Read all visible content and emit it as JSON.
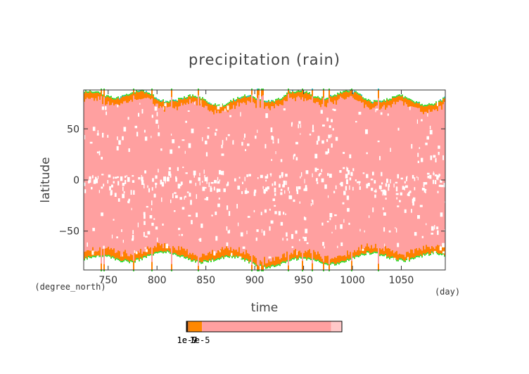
{
  "chart_data": {
    "type": "heatmap",
    "title": "precipitation (rain)",
    "xlabel": "time",
    "ylabel": "latitude",
    "x_units": "(day)",
    "y_units": "(degree_north)",
    "xlim": [
      725,
      1095
    ],
    "ylim": [
      -88,
      88
    ],
    "x_ticks": [
      750,
      800,
      850,
      900,
      950,
      1000,
      1050
    ],
    "y_ticks": [
      50,
      0,
      -50
    ],
    "x_tick_labels": [
      "750",
      "800",
      "850",
      "900",
      "950",
      "1000",
      "1050"
    ],
    "y_tick_labels": [
      "50",
      "0",
      "−50"
    ],
    "colorbar": {
      "labels": [
        "1e-7",
        "1e-5",
        "1e-9"
      ],
      "bands": [
        {
          "color": "#2a1a0a",
          "fraction": 0.01
        },
        {
          "color": "#e07010",
          "fraction": 0.01
        },
        {
          "color": "#ff8800",
          "fraction": 0.08
        },
        {
          "color": "#ffa0a0",
          "fraction": 0.83
        },
        {
          "color": "#ffc8c8",
          "fraction": 0.07
        }
      ]
    },
    "colors": {
      "background": "#ffffff",
      "main_fill": "#ffa0a0",
      "edge_orange": "#ff8000",
      "edge_green": "#33dd33",
      "edge_cyan": "#22cccc",
      "gap": "#ffffff"
    },
    "band_edges": {
      "description_free": true,
      "north_edge_lat_range": [
        62,
        88
      ],
      "south_edge_lat_range": [
        -88,
        -62
      ]
    }
  }
}
